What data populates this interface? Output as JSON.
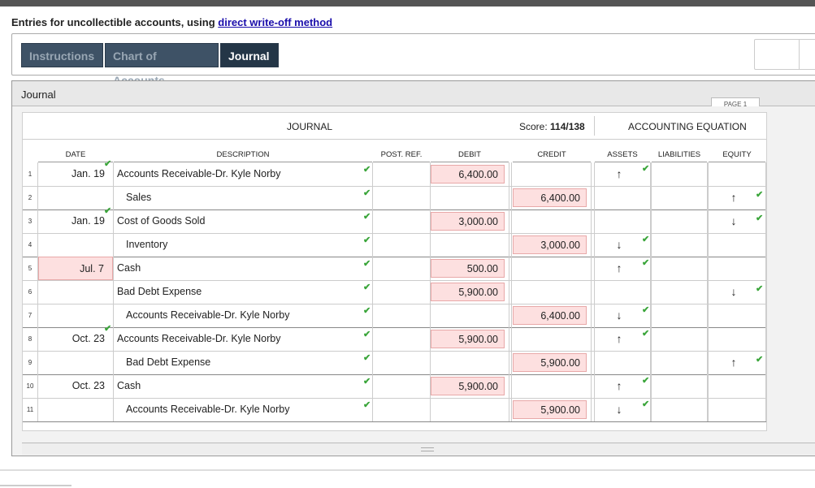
{
  "header": {
    "heading_prefix": "Entries for uncollectible accounts, using ",
    "heading_link": "direct write-off method"
  },
  "tabs": [
    {
      "label": "Instructions"
    },
    {
      "label": "Chart of Accounts"
    },
    {
      "label": "Journal"
    }
  ],
  "panel": {
    "title": "Journal",
    "page_label": "PAGE 1"
  },
  "journal": {
    "title": "JOURNAL",
    "score_label": "Score: ",
    "score_value": "114/138",
    "equation_title": "ACCOUNTING EQUATION",
    "columns": {
      "date": "DATE",
      "description": "DESCRIPTION",
      "post_ref": "POST. REF.",
      "debit": "DEBIT",
      "credit": "CREDIT",
      "assets": "ASSETS",
      "liabilities": "LIABILITIES",
      "equity": "EQUITY"
    },
    "rows": [
      {
        "num": "1",
        "date": "Jan. 19",
        "desc": "Accounts Receivable-Dr. Kyle Norby",
        "debit": "6,400.00",
        "credit": "",
        "assets": "↑",
        "liabilities": "",
        "equity": ""
      },
      {
        "num": "2",
        "date": "",
        "desc": "Sales",
        "debit": "",
        "credit": "6,400.00",
        "assets": "",
        "liabilities": "",
        "equity": "↑"
      },
      {
        "num": "3",
        "date": "Jan. 19",
        "desc": "Cost of Goods Sold",
        "debit": "3,000.00",
        "credit": "",
        "assets": "",
        "liabilities": "",
        "equity": "↓"
      },
      {
        "num": "4",
        "date": "",
        "desc": "Inventory",
        "debit": "",
        "credit": "3,000.00",
        "assets": "↓",
        "liabilities": "",
        "equity": ""
      },
      {
        "num": "5",
        "date": "Jul. 7",
        "desc": "Cash",
        "debit": "500.00",
        "credit": "",
        "assets": "↑",
        "liabilities": "",
        "equity": ""
      },
      {
        "num": "6",
        "date": "",
        "desc": "Bad Debt Expense",
        "debit": "5,900.00",
        "credit": "",
        "assets": "",
        "liabilities": "",
        "equity": "↓"
      },
      {
        "num": "7",
        "date": "",
        "desc": "Accounts Receivable-Dr. Kyle Norby",
        "debit": "",
        "credit": "6,400.00",
        "assets": "↓",
        "liabilities": "",
        "equity": ""
      },
      {
        "num": "8",
        "date": "Oct. 23",
        "desc": "Accounts Receivable-Dr. Kyle Norby",
        "debit": "5,900.00",
        "credit": "",
        "assets": "↑",
        "liabilities": "",
        "equity": ""
      },
      {
        "num": "9",
        "date": "",
        "desc": "Bad Debt Expense",
        "debit": "",
        "credit": "5,900.00",
        "assets": "",
        "liabilities": "",
        "equity": "↑"
      },
      {
        "num": "10",
        "date": "Oct. 23",
        "desc": "Cash",
        "debit": "5,900.00",
        "credit": "",
        "assets": "↑",
        "liabilities": "",
        "equity": ""
      },
      {
        "num": "11",
        "date": "",
        "desc": "Accounts Receivable-Dr. Kyle Norby",
        "debit": "",
        "credit": "5,900.00",
        "assets": "↓",
        "liabilities": "",
        "equity": ""
      }
    ]
  },
  "colors": {
    "check": "#3aa53a",
    "error_fill": "#fde0e0",
    "tab_bg": "#3e5266",
    "tab_active_bg": "#243647",
    "link": "#1a0dab"
  }
}
